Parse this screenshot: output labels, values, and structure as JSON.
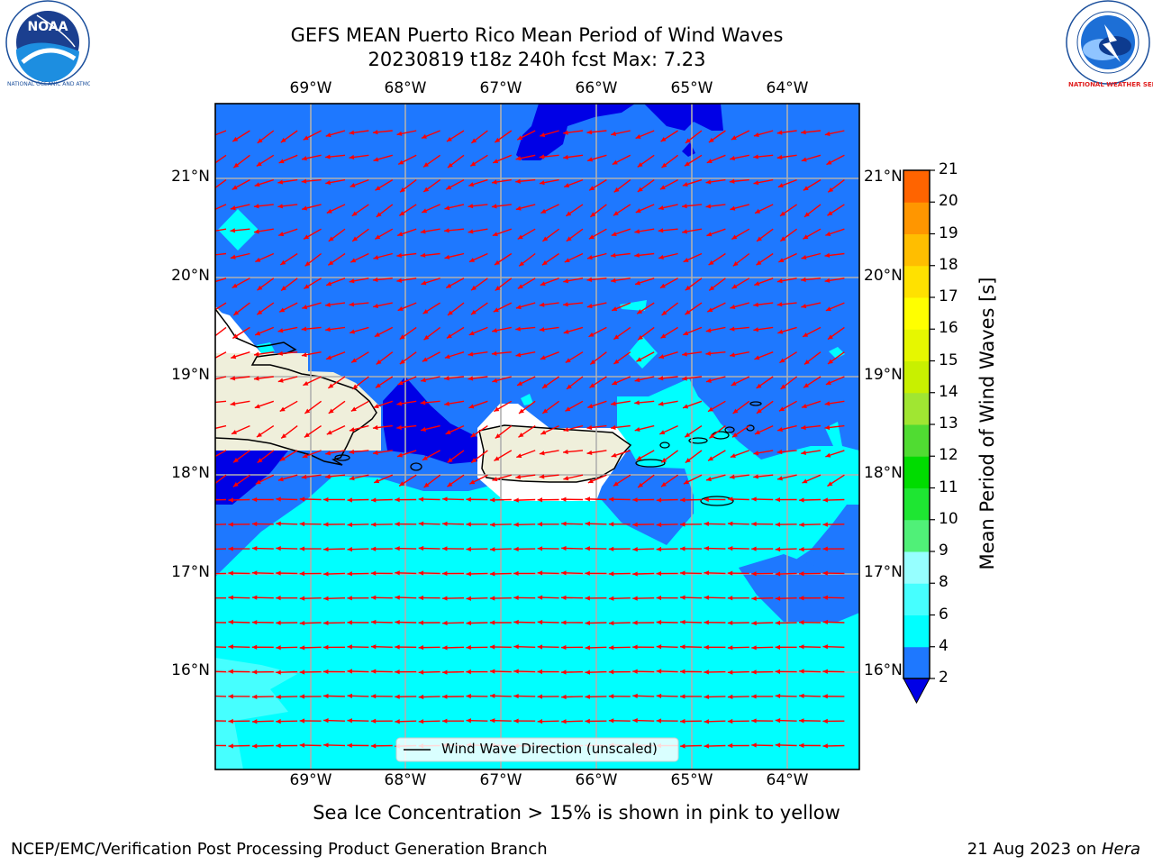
{
  "header": {
    "title_line1": "GEFS MEAN Puerto Rico Mean Period of Wind Waves",
    "title_line2": "20230819 t18z 240h fcst   Max: 7.23"
  },
  "logos": {
    "left": "NOAA",
    "left_ring_text": "NATIONAL OCEANIC AND ATMOSPHERIC ADMINISTRATION · U.S. DEPARTMENT OF COMMERCE",
    "right_ring_text": "NATIONAL WEATHER SERVICE"
  },
  "map": {
    "lon_labels": [
      "69°W",
      "68°W",
      "67°W",
      "66°W",
      "65°W",
      "64°W"
    ],
    "lat_labels": [
      "21°N",
      "20°N",
      "19°N",
      "18°N",
      "17°N",
      "16°N"
    ],
    "legend_label": "Wind Wave Direction (unscaled)",
    "arrow_color": "#ff0000",
    "land_color": "#efefdb",
    "colors": {
      "band_2_4": "#1e78ff",
      "below_2": "#0000e6",
      "band_4_6": "#00ffff",
      "band_6_8": "#46ffff"
    }
  },
  "colorbar": {
    "title": "Mean Period of Wind Waves [s]",
    "ticks": [
      "2",
      "4",
      "6",
      "8",
      "9",
      "10",
      "11",
      "12",
      "13",
      "14",
      "15",
      "16",
      "17",
      "18",
      "19",
      "20",
      "21"
    ],
    "colors": [
      "#1e78ff",
      "#00ffff",
      "#46ffff",
      "#96ffff",
      "#50f078",
      "#1ee632",
      "#00dc00",
      "#50dc32",
      "#a0e632",
      "#c8f000",
      "#e6f700",
      "#ffff00",
      "#ffe100",
      "#ffbe00",
      "#ff9600",
      "#ff6400",
      "#ff3200",
      "#ff0000"
    ],
    "under_color": "#0000e6"
  },
  "footer": {
    "subtitle": "Sea Ice Concentration > 15% is shown in pink to yellow",
    "left": "NCEP/EMC/Verification Post Processing Product Generation Branch",
    "date": "21 Aug 2023 on ",
    "machine": "Hera"
  }
}
